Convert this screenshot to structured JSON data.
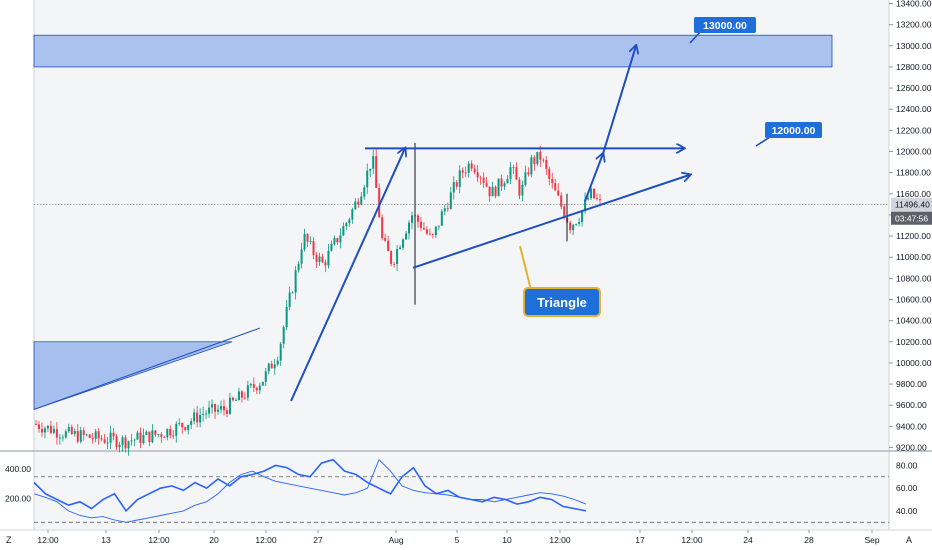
{
  "chart_data": [
    {
      "type": "candlestick",
      "y_ticks": [
        "13400.00",
        "13200.00",
        "13000.00",
        "12800.00",
        "12600.00",
        "12400.00",
        "12200.00",
        "12000.00",
        "11800.00",
        "11600.00",
        "11400.00",
        "11200.00",
        "11000.00",
        "10800.00",
        "10600.00",
        "10400.00",
        "10200.00",
        "10000.00",
        "9800.00",
        "9600.00",
        "9400.00",
        "9200.00"
      ],
      "ylim": [
        9200,
        13400
      ],
      "x_ticks": [
        "12:00",
        "13",
        "12:00",
        "20",
        "12:00",
        "27",
        "Aug",
        "5",
        "10",
        "12:00",
        "17",
        "12:00",
        "24",
        "28",
        "Sep"
      ],
      "last_price": "11496.40",
      "countdown": "03:47:56",
      "price_path": [
        [
          0,
          9420
        ],
        [
          6,
          9330
        ],
        [
          12,
          9290
        ],
        [
          18,
          9260
        ],
        [
          25,
          9330
        ],
        [
          30,
          9420
        ],
        [
          34,
          9530
        ],
        [
          38,
          9560
        ],
        [
          42,
          9700
        ],
        [
          46,
          9850
        ],
        [
          49,
          10100
        ],
        [
          51,
          10550
        ],
        [
          53,
          10950
        ],
        [
          54,
          11200
        ],
        [
          56,
          11050
        ],
        [
          58,
          10930
        ],
        [
          60,
          11100
        ],
        [
          63,
          11350
        ],
        [
          65,
          11550
        ],
        [
          67,
          11800
        ],
        [
          68,
          11950
        ],
        [
          69,
          11550
        ],
        [
          70,
          11150
        ],
        [
          72,
          10950
        ],
        [
          74,
          11200
        ],
        [
          76,
          11400
        ],
        [
          78,
          11300
        ],
        [
          80,
          11150
        ],
        [
          82,
          11400
        ],
        [
          84,
          11600
        ],
        [
          86,
          11800
        ],
        [
          88,
          11900
        ],
        [
          90,
          11780
        ],
        [
          92,
          11600
        ],
        [
          94,
          11700
        ],
        [
          96,
          11850
        ],
        [
          98,
          11600
        ],
        [
          100,
          11900
        ],
        [
          102,
          11950
        ],
        [
          104,
          11700
        ],
        [
          106,
          11500
        ],
        [
          108,
          11300
        ],
        [
          110,
          11400
        ],
        [
          112,
          11600
        ],
        [
          114,
          11500
        ]
      ],
      "support_zone": [
        9560,
        10200
      ],
      "resistance_zone": [
        12800,
        13100
      ],
      "annotations": [
        {
          "text": "13000.00",
          "price": 13000
        },
        {
          "text": "12000.00",
          "price": 12000
        },
        {
          "text": "Triangle"
        }
      ],
      "pattern": "ascending triangle",
      "colors": {
        "up": "#089981",
        "down": "#f23645",
        "drawing": "#1e4fc2",
        "zone": "#9fb9ec"
      }
    },
    {
      "type": "line",
      "left_ticks": [
        "400.00",
        "200.00"
      ],
      "right_ticks": [
        "80.00",
        "60.00",
        "40.00"
      ],
      "left_ylim": [
        0,
        500
      ],
      "right_ylim": [
        25,
        90
      ],
      "levels": [
        70,
        30
      ],
      "series": [
        {
          "values": [
            65,
            55,
            50,
            45,
            48,
            42,
            50,
            55,
            40,
            50,
            55,
            60,
            62,
            58,
            65,
            60,
            68,
            62,
            70,
            72,
            75,
            80,
            78,
            72,
            70,
            82,
            85,
            75,
            72,
            65,
            60,
            55,
            70,
            78,
            62,
            55,
            58,
            52,
            50,
            48,
            52,
            50,
            46,
            48,
            52,
            50,
            44,
            42,
            40
          ]
        },
        {
          "values": [
            55,
            52,
            48,
            40,
            36,
            34,
            35,
            32,
            30,
            32,
            34,
            36,
            38,
            40,
            45,
            48,
            55,
            65,
            72,
            75,
            70,
            66,
            64,
            62,
            60,
            58,
            56,
            54,
            56,
            60,
            85,
            75,
            62,
            58,
            56,
            55,
            54,
            52,
            50,
            50,
            48,
            50,
            52,
            54,
            56,
            55,
            53,
            50,
            46
          ]
        }
      ],
      "colors": {
        "line": "#2962ff",
        "level": "#666666"
      }
    }
  ],
  "footer": {
    "left_glyph": "Z",
    "right_glyph": "A"
  },
  "colors": {
    "axis_text": "#131722",
    "grid": "#e0e3eb"
  }
}
